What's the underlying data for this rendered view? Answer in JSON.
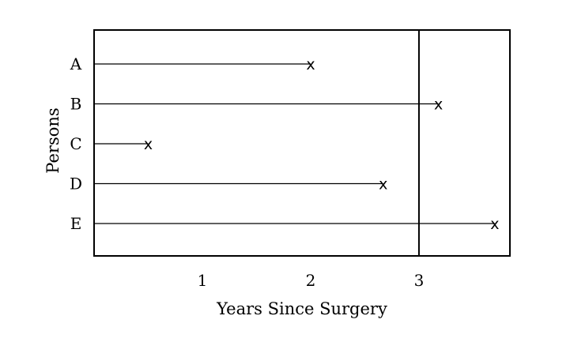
{
  "chart_data": {
    "type": "timeline",
    "title": "",
    "xlabel": "Years Since Surgery",
    "ylabel": "Persons",
    "xlim": [
      0,
      3.84
    ],
    "x_ticks": [
      "1",
      "2",
      "3"
    ],
    "categories": [
      "A",
      "B",
      "C",
      "D",
      "E"
    ],
    "series": [
      {
        "values": [
          2.0,
          3.18,
          0.5,
          2.67,
          3.7
        ]
      }
    ],
    "cutoff_x": 3,
    "marker": "x",
    "grid": false,
    "colors": {
      "ink": "#000000",
      "background": "#ffffff"
    }
  }
}
